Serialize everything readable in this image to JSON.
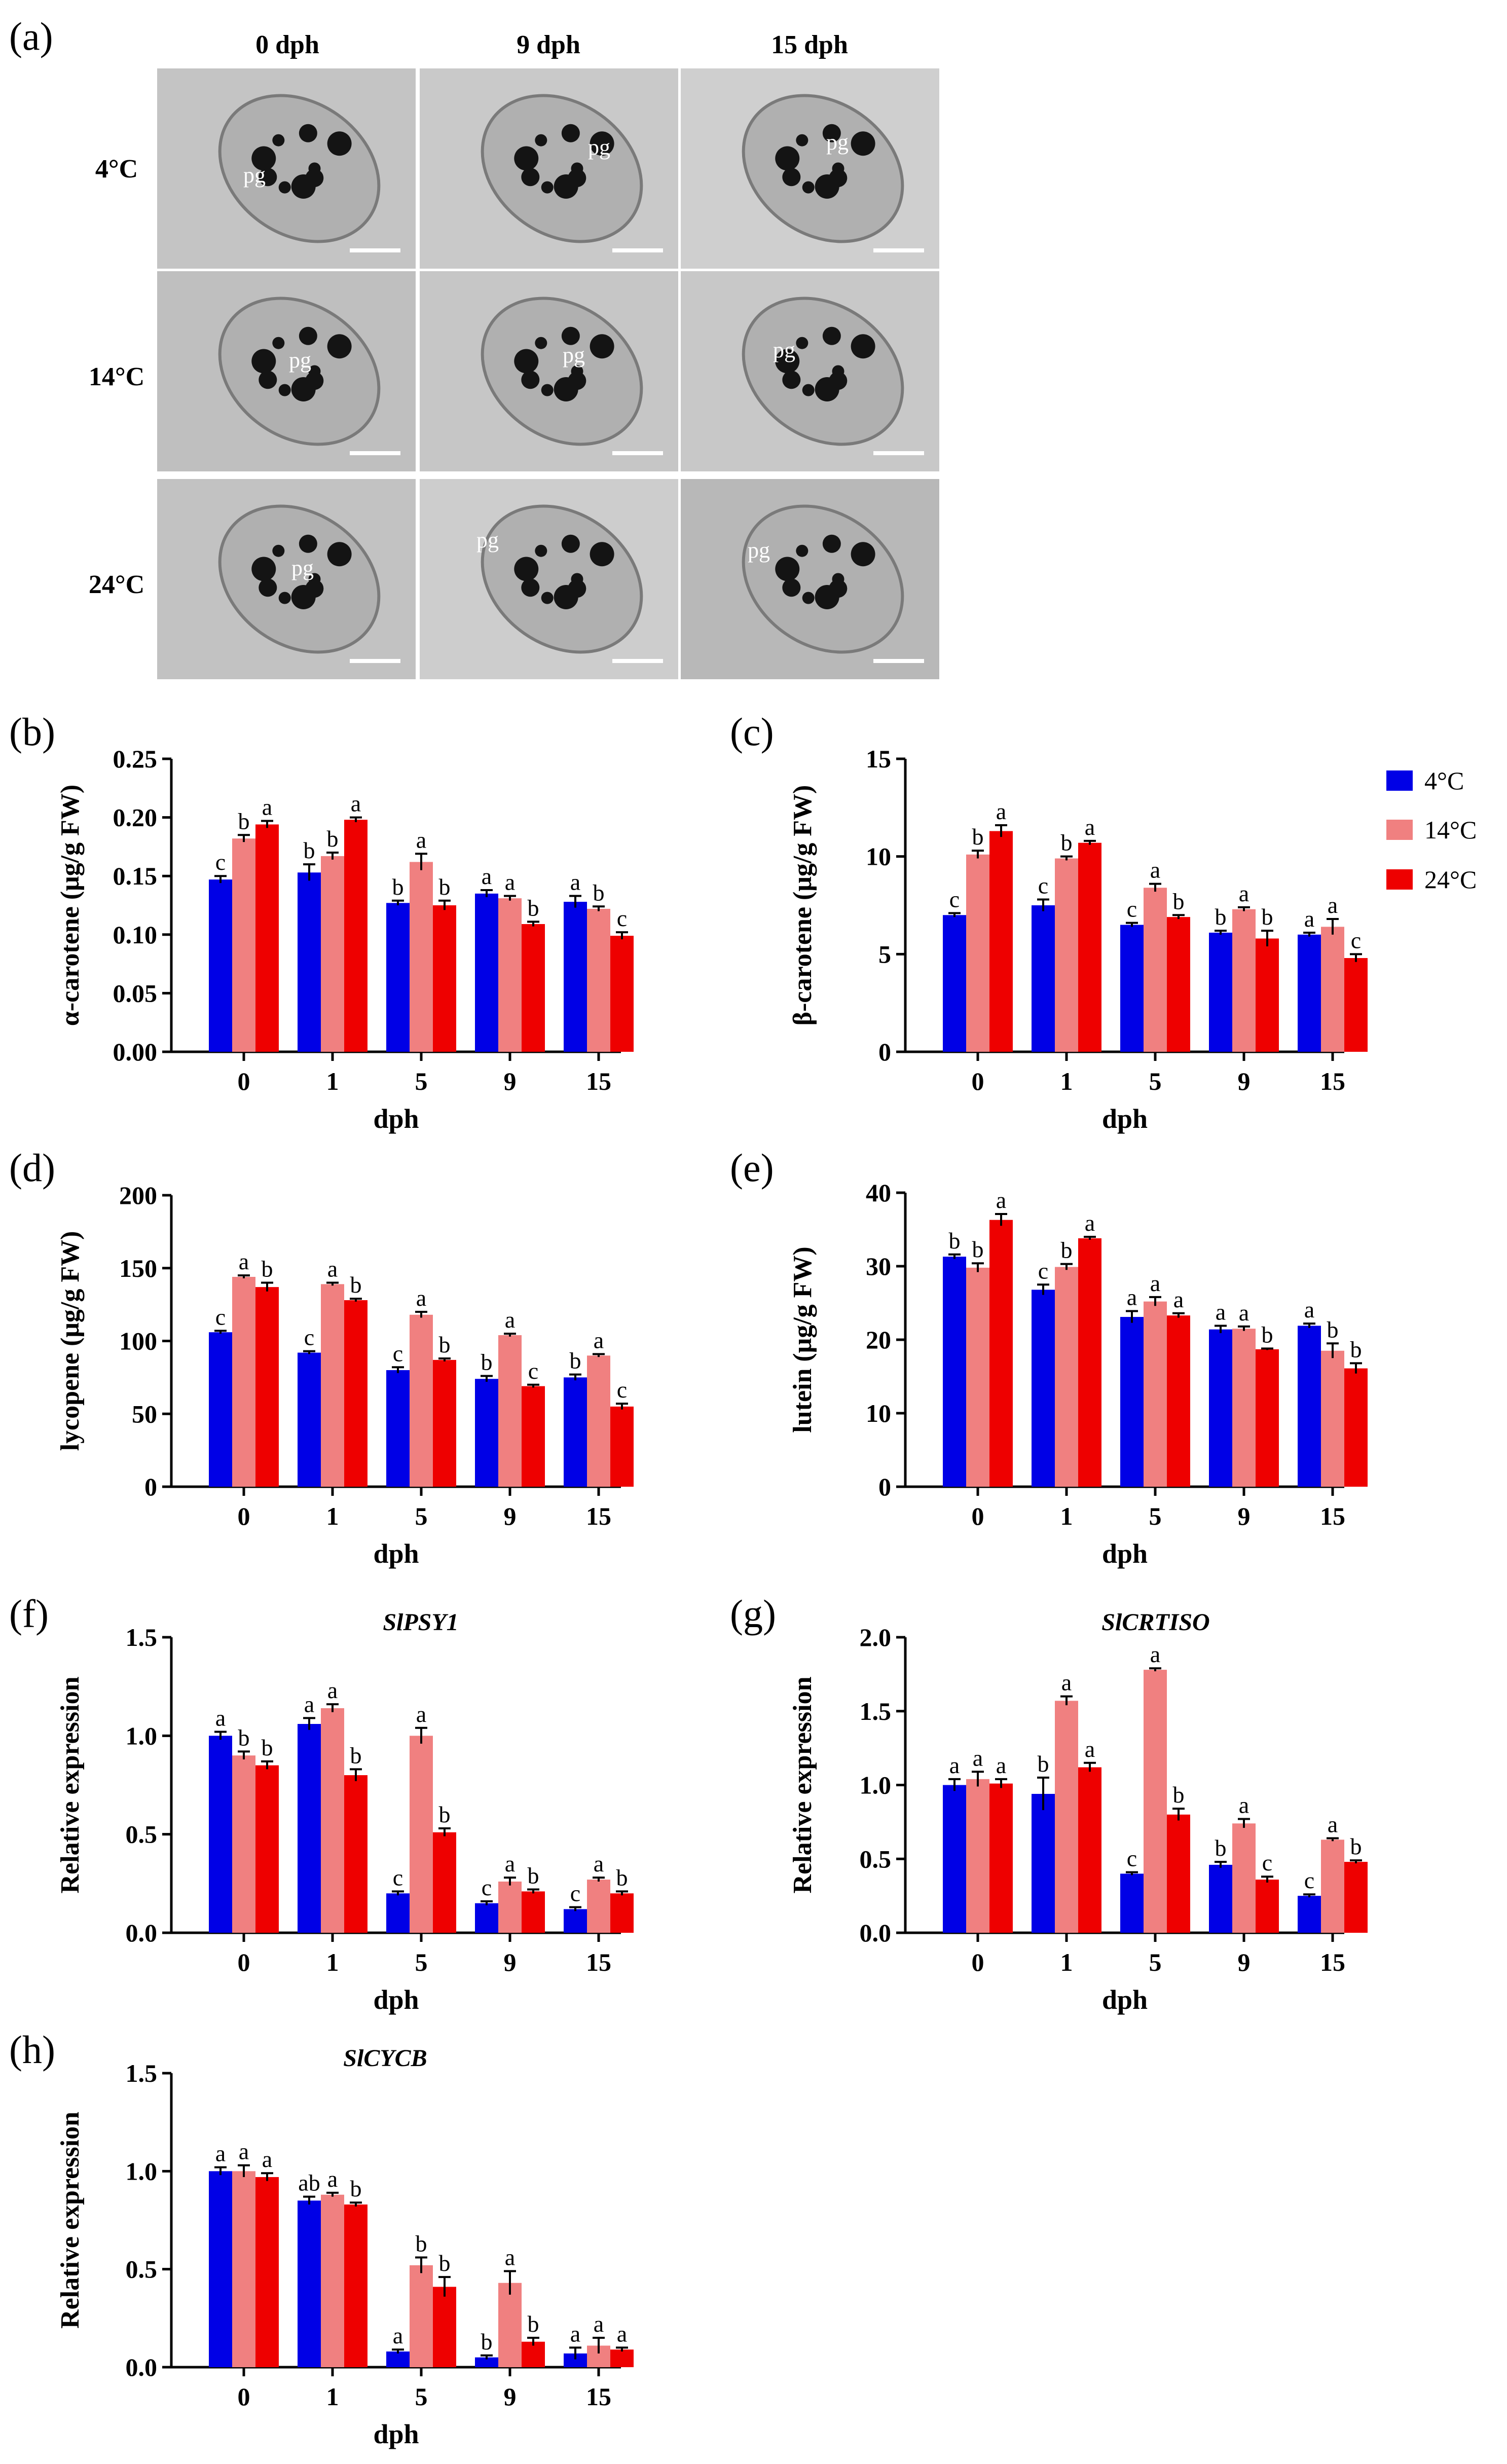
{
  "panel_a": {
    "label": "(a)",
    "columns": [
      "0 dph",
      "9 dph",
      "15 dph"
    ],
    "rows": [
      "4°C",
      "14°C",
      "24°C"
    ],
    "cell_label": "pg"
  },
  "legend": {
    "items": [
      {
        "name": "4°C",
        "color": "#0000e6"
      },
      {
        "name": "14°C",
        "color": "#f08080"
      },
      {
        "name": "24°C",
        "color": "#ee0000"
      }
    ]
  },
  "colors": {
    "s4": "#0000e6",
    "s14": "#f08080",
    "s24": "#ee0000"
  },
  "chart_data": [
    {
      "id": "b",
      "label": "(b)",
      "type": "bar",
      "title": "",
      "xlabel": "dph",
      "ylabel": "α-carotene (μg/g FW)",
      "ylim": [
        0,
        0.25
      ],
      "yticks": [
        "0.00",
        "0.05",
        "0.10",
        "0.15",
        "0.20",
        "0.25"
      ],
      "categories": [
        "0",
        "1",
        "5",
        "9",
        "15"
      ],
      "series": [
        {
          "name": "4°C",
          "values": [
            0.147,
            0.153,
            0.127,
            0.135,
            0.128
          ],
          "errors": [
            0.003,
            0.007,
            0.002,
            0.003,
            0.005
          ],
          "letters": [
            "c",
            "b",
            "b",
            "a",
            "a"
          ]
        },
        {
          "name": "14°C",
          "values": [
            0.182,
            0.167,
            0.162,
            0.131,
            0.122
          ],
          "errors": [
            0.003,
            0.003,
            0.007,
            0.002,
            0.002
          ],
          "letters": [
            "b",
            "b",
            "a",
            "a",
            "b"
          ]
        },
        {
          "name": "24°C",
          "values": [
            0.194,
            0.198,
            0.125,
            0.109,
            0.099
          ],
          "errors": [
            0.003,
            0.002,
            0.004,
            0.002,
            0.003
          ],
          "letters": [
            "a",
            "a",
            "b",
            "b",
            "c"
          ]
        }
      ]
    },
    {
      "id": "c",
      "label": "(c)",
      "type": "bar",
      "title": "",
      "xlabel": "dph",
      "ylabel": "β-carotene (μg/g FW)",
      "ylim": [
        0,
        15
      ],
      "yticks": [
        "0",
        "5",
        "10",
        "15"
      ],
      "categories": [
        "0",
        "1",
        "5",
        "9",
        "15"
      ],
      "series": [
        {
          "name": "4°C",
          "values": [
            7.0,
            7.5,
            6.5,
            6.1,
            6.0
          ],
          "errors": [
            0.1,
            0.3,
            0.1,
            0.1,
            0.1
          ],
          "letters": [
            "c",
            "c",
            "c",
            "b",
            "a"
          ]
        },
        {
          "name": "14°C",
          "values": [
            10.1,
            9.9,
            8.4,
            7.3,
            6.4
          ],
          "errors": [
            0.2,
            0.1,
            0.2,
            0.1,
            0.4
          ],
          "letters": [
            "b",
            "b",
            "a",
            "a",
            "a"
          ]
        },
        {
          "name": "24°C",
          "values": [
            11.3,
            10.7,
            6.9,
            5.8,
            4.8
          ],
          "errors": [
            0.3,
            0.1,
            0.1,
            0.4,
            0.2
          ],
          "letters": [
            "a",
            "a",
            "b",
            "b",
            "c"
          ]
        }
      ]
    },
    {
      "id": "d",
      "label": "(d)",
      "type": "bar",
      "title": "",
      "xlabel": "dph",
      "ylabel": "lycopene (μg/g FW)",
      "ylim": [
        0,
        200
      ],
      "yticks": [
        "0",
        "50",
        "100",
        "150",
        "200"
      ],
      "categories": [
        "0",
        "1",
        "5",
        "9",
        "15"
      ],
      "series": [
        {
          "name": "4°C",
          "values": [
            106,
            92,
            80,
            74,
            75
          ],
          "errors": [
            1,
            1,
            2,
            2,
            2
          ],
          "letters": [
            "c",
            "c",
            "c",
            "b",
            "b"
          ]
        },
        {
          "name": "14°C",
          "values": [
            144,
            139,
            118,
            104,
            90
          ],
          "errors": [
            1,
            1,
            2,
            1,
            1
          ],
          "letters": [
            "a",
            "a",
            "a",
            "a",
            "a"
          ]
        },
        {
          "name": "24°C",
          "values": [
            137,
            128,
            87,
            69,
            55
          ],
          "errors": [
            3,
            1,
            1,
            1,
            2
          ],
          "letters": [
            "b",
            "b",
            "b",
            "c",
            "c"
          ]
        }
      ]
    },
    {
      "id": "e",
      "label": "(e)",
      "type": "bar",
      "title": "",
      "xlabel": "dph",
      "ylabel": "lutein (μg/g FW)",
      "ylim": [
        0,
        40
      ],
      "yticks": [
        "0",
        "10",
        "20",
        "30",
        "40"
      ],
      "categories": [
        "0",
        "1",
        "5",
        "9",
        "15"
      ],
      "series": [
        {
          "name": "4°C",
          "values": [
            31.3,
            26.8,
            23.1,
            21.4,
            21.9
          ],
          "errors": [
            0.3,
            0.7,
            0.8,
            0.5,
            0.3
          ],
          "letters": [
            "b",
            "c",
            "a",
            "a",
            "a"
          ]
        },
        {
          "name": "14°C",
          "values": [
            29.8,
            29.9,
            25.2,
            21.5,
            18.5
          ],
          "errors": [
            0.6,
            0.4,
            0.6,
            0.3,
            1.0
          ],
          "letters": [
            "b",
            "b",
            "a",
            "a",
            "b"
          ]
        },
        {
          "name": "24°C",
          "values": [
            36.3,
            33.8,
            23.3,
            18.7,
            16.1
          ],
          "errors": [
            0.8,
            0.2,
            0.3,
            0.1,
            0.7
          ],
          "letters": [
            "a",
            "a",
            "a",
            "b",
            "b"
          ]
        }
      ]
    },
    {
      "id": "f",
      "label": "(f)",
      "type": "bar",
      "title": "SlPSY1",
      "xlabel": "dph",
      "ylabel": "Relative expression",
      "ylim": [
        0,
        1.5
      ],
      "yticks": [
        "0.0",
        "0.5",
        "1.0",
        "1.5"
      ],
      "categories": [
        "0",
        "1",
        "5",
        "9",
        "15"
      ],
      "series": [
        {
          "name": "4°C",
          "values": [
            1.0,
            1.06,
            0.2,
            0.15,
            0.12
          ],
          "errors": [
            0.02,
            0.03,
            0.01,
            0.01,
            0.01
          ],
          "letters": [
            "a",
            "a",
            "c",
            "c",
            "c"
          ]
        },
        {
          "name": "14°C",
          "values": [
            0.9,
            1.14,
            1.0,
            0.26,
            0.27
          ],
          "errors": [
            0.02,
            0.02,
            0.04,
            0.02,
            0.01
          ],
          "letters": [
            "b",
            "a",
            "a",
            "a",
            "a"
          ]
        },
        {
          "name": "24°C",
          "values": [
            0.85,
            0.8,
            0.51,
            0.21,
            0.2
          ],
          "errors": [
            0.02,
            0.03,
            0.02,
            0.01,
            0.01
          ],
          "letters": [
            "b",
            "b",
            "b",
            "b",
            "b"
          ]
        }
      ]
    },
    {
      "id": "g",
      "label": "(g)",
      "type": "bar",
      "title": "SlCRTISO",
      "xlabel": "dph",
      "ylabel": "Relative expression",
      "ylim": [
        0,
        2.0
      ],
      "yticks": [
        "0.0",
        "0.5",
        "1.0",
        "1.5",
        "2.0"
      ],
      "categories": [
        "0",
        "1",
        "5",
        "9",
        "15"
      ],
      "series": [
        {
          "name": "4°C",
          "values": [
            1.0,
            0.94,
            0.4,
            0.46,
            0.25
          ],
          "errors": [
            0.04,
            0.11,
            0.01,
            0.02,
            0.01
          ],
          "letters": [
            "a",
            "b",
            "c",
            "b",
            "c"
          ]
        },
        {
          "name": "14°C",
          "values": [
            1.04,
            1.57,
            1.78,
            0.74,
            0.63
          ],
          "errors": [
            0.05,
            0.03,
            0.01,
            0.03,
            0.01
          ],
          "letters": [
            "a",
            "a",
            "a",
            "a",
            "a"
          ]
        },
        {
          "name": "24°C",
          "values": [
            1.01,
            1.12,
            0.8,
            0.36,
            0.48
          ],
          "errors": [
            0.03,
            0.03,
            0.04,
            0.02,
            0.01
          ],
          "letters": [
            "a",
            "a",
            "b",
            "c",
            "b"
          ]
        }
      ]
    },
    {
      "id": "h",
      "label": "(h)",
      "type": "bar",
      "title": "SlCYCB",
      "xlabel": "dph",
      "ylabel": "Relative expression",
      "ylim": [
        0,
        1.5
      ],
      "yticks": [
        "0.0",
        "0.5",
        "1.0",
        "1.5"
      ],
      "categories": [
        "0",
        "1",
        "5",
        "9",
        "15"
      ],
      "series": [
        {
          "name": "4°C",
          "values": [
            1.0,
            0.85,
            0.08,
            0.05,
            0.07
          ],
          "errors": [
            0.02,
            0.02,
            0.01,
            0.01,
            0.03
          ],
          "letters": [
            "a",
            "ab",
            "a",
            "b",
            "a"
          ]
        },
        {
          "name": "14°C",
          "values": [
            1.0,
            0.88,
            0.52,
            0.43,
            0.11
          ],
          "errors": [
            0.03,
            0.01,
            0.04,
            0.06,
            0.04
          ],
          "letters": [
            "a",
            "a",
            "b",
            "a",
            "a"
          ]
        },
        {
          "name": "24°C",
          "values": [
            0.97,
            0.83,
            0.41,
            0.13,
            0.09
          ],
          "errors": [
            0.02,
            0.01,
            0.05,
            0.02,
            0.01
          ],
          "letters": [
            "a",
            "b",
            "b",
            "b",
            "a"
          ]
        }
      ]
    }
  ]
}
